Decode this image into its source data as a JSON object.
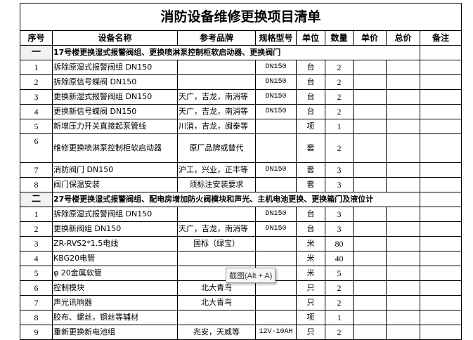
{
  "title": "消防设备维修更换项目清单",
  "headers": [
    "序号",
    "设备名称",
    "参考品牌",
    "规格型号",
    "单位",
    "数量",
    "单价",
    "总价",
    "备注"
  ],
  "sections": [
    {
      "no": "一",
      "title": "17号楼更换湿式报警阀组、更换喷淋泵控制柜软启动器、更换阀门",
      "rows": [
        {
          "no": "1",
          "name": "拆除原湿式报警阀组 DN150",
          "brand": "",
          "spec": "DN150",
          "unit": "台",
          "qty": "2"
        },
        {
          "no": "2",
          "name": "拆除原信号蝶阀 DN150",
          "brand": "",
          "spec": "DN150",
          "unit": "台",
          "qty": "2"
        },
        {
          "no": "3",
          "name": "更换新湿式报警阀组 DN150",
          "brand": "天广，吉龙，南消等",
          "spec": "DN150",
          "unit": "台",
          "qty": "2"
        },
        {
          "no": "4",
          "name": "更换新信号蝶阀 DN150",
          "brand": "天广，吉龙，南消等",
          "spec": "DN150",
          "unit": "台",
          "qty": "2"
        },
        {
          "no": "5",
          "name": "新增压力开关直接起泵管线",
          "brand": "川消，吉龙，闽泰等",
          "spec": "",
          "unit": "项",
          "qty": "1"
        },
        {
          "no": "6",
          "name": "维修更换喷淋泵控制柜软启动器",
          "brand": "原厂品牌或替代",
          "spec": "",
          "unit": "套",
          "qty": "2"
        },
        {
          "no": "7",
          "name": "消防阀门 DN150",
          "brand": "沪工，兴业，正丰等",
          "spec": "DN150",
          "unit": "套",
          "qty": "3"
        },
        {
          "no": "8",
          "name": "阀门保温安装",
          "brand": "须标注安装要求",
          "spec": "",
          "unit": "套",
          "qty": "3"
        }
      ]
    },
    {
      "no": "二",
      "title": "27号楼更换湿式报警阀组、配电房增加防火阀模块和声光、主机电池更换、更换箱门及液位计",
      "rows": [
        {
          "no": "1",
          "name": "拆除原湿式报警阀组 DN150",
          "brand": "",
          "spec": "DN150",
          "unit": "台",
          "qty": "3"
        },
        {
          "no": "2",
          "name": "更换新阀组 DN150",
          "brand": "天广，吉龙，南消等",
          "spec": "DN150",
          "unit": "台",
          "qty": "3"
        },
        {
          "no": "3",
          "name": "ZR-RVS2*1.5电线",
          "brand": "国标（绿宝）",
          "spec": "",
          "unit": "米",
          "qty": "80"
        },
        {
          "no": "4",
          "name": "KBG20电管",
          "brand": "",
          "spec": "",
          "unit": "米",
          "qty": "40"
        },
        {
          "no": "5",
          "name": "φ 20金属软管",
          "brand": "",
          "spec": "",
          "unit": "米",
          "qty": "5"
        },
        {
          "no": "6",
          "name": "控制模块",
          "brand": "北大青鸟",
          "spec": "",
          "unit": "只",
          "qty": "2"
        },
        {
          "no": "7",
          "name": "声光讯响器",
          "brand": "北大青鸟",
          "spec": "",
          "unit": "只",
          "qty": "2"
        },
        {
          "no": "8",
          "name": "胶布、螺丝，钢丝等辅材",
          "brand": "",
          "spec": "",
          "unit": "项",
          "qty": "1"
        },
        {
          "no": "9",
          "name": "重新更换新电池组",
          "brand": "兆安，天威等",
          "spec": "12V-10AH",
          "unit": "只",
          "qty": "2"
        }
      ]
    }
  ],
  "tooltip": "截图(Alt + A)"
}
